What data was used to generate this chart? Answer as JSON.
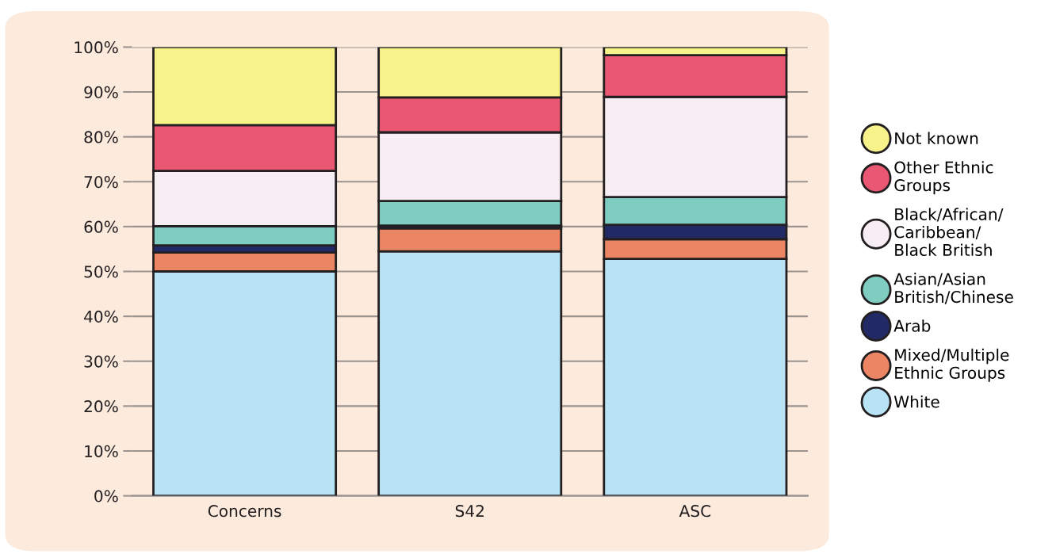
{
  "chart_data": {
    "type": "bar",
    "stacked": true,
    "categories": [
      "Concerns",
      "S42",
      "ASC"
    ],
    "series": [
      {
        "name": "White",
        "color": "#b7e3f5",
        "values": [
          50,
          54.5,
          52.8
        ]
      },
      {
        "name": "Mixed/Multiple\nEthnic Groups",
        "color": "#eb8563",
        "values": [
          4.2,
          5.1,
          4.4
        ]
      },
      {
        "name": "Arab",
        "color": "#222a66",
        "values": [
          1.6,
          0.6,
          3.2
        ]
      },
      {
        "name": "Asian/Asian\nBritish/Chinese",
        "color": "#7fccc0",
        "values": [
          4.3,
          5.5,
          6.2
        ]
      },
      {
        "name": "Black/African/\nCaribbean/\nBlack British",
        "color": "#f7eef3",
        "values": [
          12.3,
          15.3,
          22.3
        ]
      },
      {
        "name": "Other Ethnic\nGroups",
        "color": "#e95773",
        "values": [
          10.2,
          7.8,
          9.3
        ]
      },
      {
        "name": "Not known",
        "color": "#f7f28a",
        "values": [
          17.4,
          11.2,
          1.8
        ]
      }
    ],
    "ylim": [
      0,
      100
    ],
    "yticks": [
      {
        "value": 0,
        "label": "0%"
      },
      {
        "value": 10,
        "label": "10%"
      },
      {
        "value": 20,
        "label": "20%"
      },
      {
        "value": 30,
        "label": "30%"
      },
      {
        "value": 40,
        "label": "40%"
      },
      {
        "value": 50,
        "label": "50%"
      },
      {
        "value": 60,
        "label": "60%"
      },
      {
        "value": 70,
        "label": "70%"
      },
      {
        "value": 80,
        "label": "80%"
      },
      {
        "value": 90,
        "label": "90%"
      },
      {
        "value": 100,
        "label": "100%"
      }
    ],
    "grid": "y",
    "legend": "right"
  }
}
